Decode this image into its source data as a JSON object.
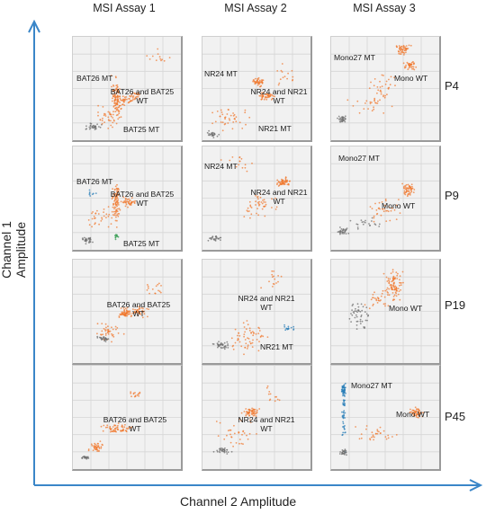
{
  "chart_data": {
    "type": "scatter",
    "xlabel": "Channel 2 Amplitude",
    "ylabel": "Channel 1 Amplitude",
    "columns": [
      "MSI Assay 1",
      "MSI Assay 2",
      "MSI Assay 3"
    ],
    "rows": [
      "P4",
      "P9",
      "P19",
      "P45"
    ],
    "colors": {
      "axis": "#3a86c8",
      "orange": "#f07a30",
      "gray": "#6e6e6e",
      "green": "#2f9a4c",
      "blue": "#2b7fb8"
    },
    "panels": [
      [
        {
          "labels": [
            "BAT26 MT",
            "BAT26 and BAT25 WT",
            "BAT25 MT"
          ]
        },
        {
          "labels": [
            "NR24 MT",
            "NR24 and NR21 WT",
            "NR21 MT"
          ]
        },
        {
          "labels": [
            "Mono27 MT",
            "Mono WT"
          ]
        }
      ],
      [
        {
          "labels": [
            "BAT26 MT",
            "BAT26 and BAT25 WT",
            "BAT25 MT"
          ]
        },
        {
          "labels": [
            "NR24 MT",
            "NR24 and NR21 WT"
          ]
        },
        {
          "labels": [
            "Mono27 MT",
            "Mono WT"
          ]
        }
      ],
      [
        {
          "labels": [
            "BAT26 and BAT25 WT"
          ]
        },
        {
          "labels": [
            "NR24 and NR21 WT",
            "NR21 MT"
          ]
        },
        {
          "labels": [
            "Mono WT"
          ]
        }
      ],
      [
        {
          "labels": [
            "BAT26 and BAT25 WT"
          ]
        },
        {
          "labels": [
            "NR24 and NR21 WT"
          ]
        },
        {
          "labels": [
            "Mono27 MT",
            "Mono WT"
          ]
        }
      ]
    ]
  }
}
